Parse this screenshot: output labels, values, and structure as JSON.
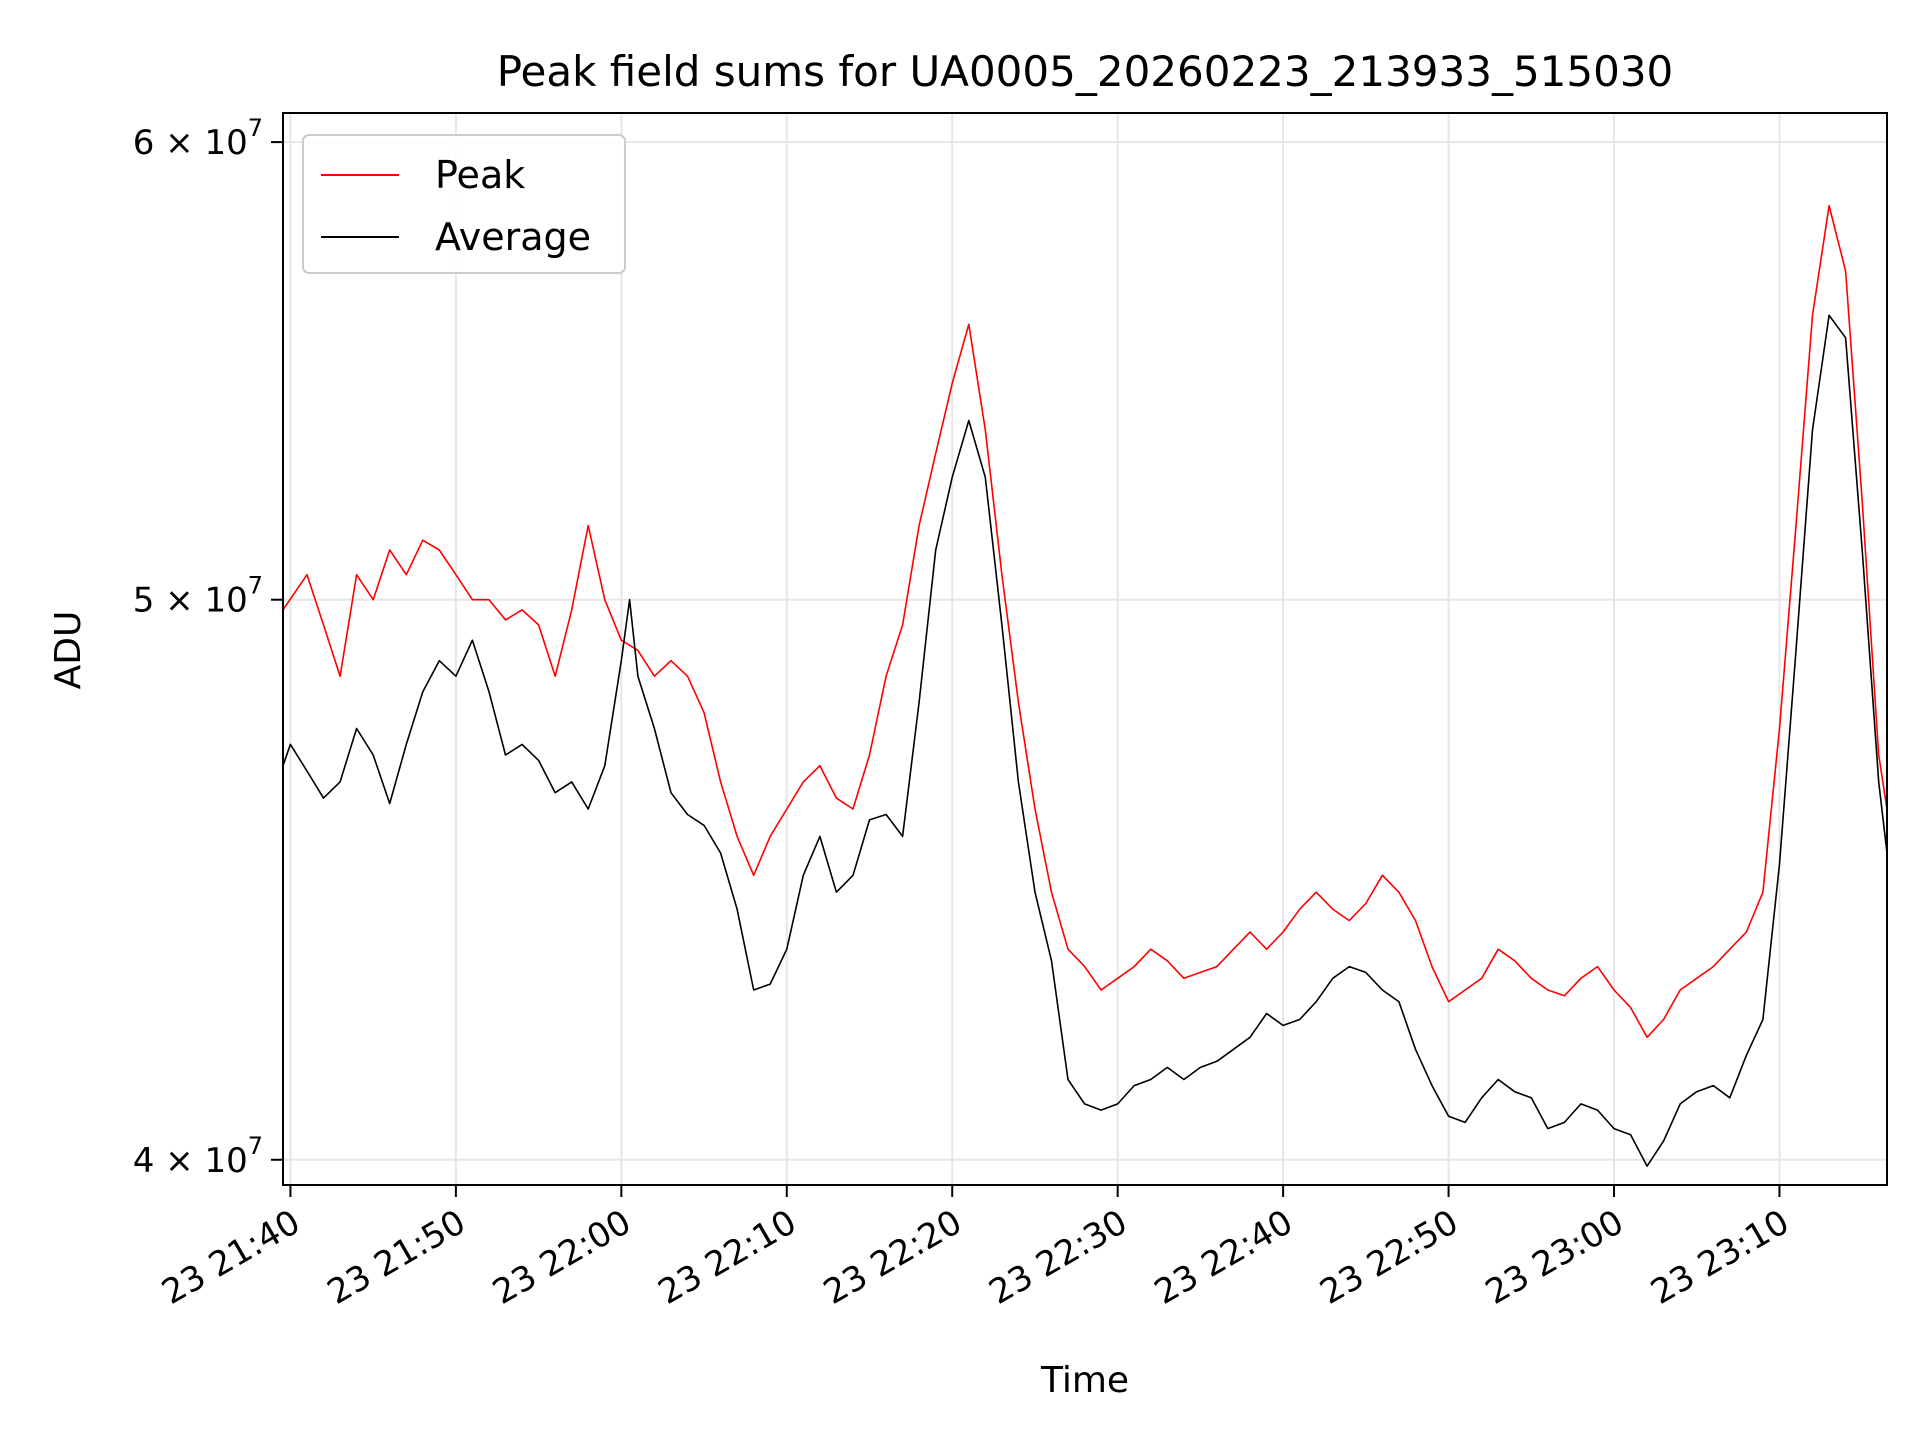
{
  "chart_data": {
    "type": "line",
    "title": "Peak field sums for UA0005_20260223_213933_515030",
    "xlabel": "Time",
    "ylabel": "ADU",
    "x_range": [
      "2026-02-23 21:39:33",
      "2026-02-23 23:16:30"
    ],
    "ylim": [
      39600000,
      60700000
    ],
    "y_scale": "log",
    "y_ticks": [
      {
        "value": 40000000,
        "mantissa": "4",
        "exp": "7"
      },
      {
        "value": 50000000,
        "mantissa": "5",
        "exp": "7"
      },
      {
        "value": 60000000,
        "mantissa": "6",
        "exp": "7"
      }
    ],
    "x_ticks": [
      {
        "time": "2026-02-23 21:40:00",
        "label": "23 21:40"
      },
      {
        "time": "2026-02-23 21:50:00",
        "label": "23 21:50"
      },
      {
        "time": "2026-02-23 22:00:00",
        "label": "23 22:00"
      },
      {
        "time": "2026-02-23 22:10:00",
        "label": "23 22:10"
      },
      {
        "time": "2026-02-23 22:20:00",
        "label": "23 22:20"
      },
      {
        "time": "2026-02-23 22:30:00",
        "label": "23 22:30"
      },
      {
        "time": "2026-02-23 22:40:00",
        "label": "23 22:40"
      },
      {
        "time": "2026-02-23 22:50:00",
        "label": "23 22:50"
      },
      {
        "time": "2026-02-23 23:00:00",
        "label": "23 23:00"
      },
      {
        "time": "2026-02-23 23:10:00",
        "label": "23 23:10"
      }
    ],
    "grid": true,
    "legend_position": "top-left",
    "series": [
      {
        "name": "Peak",
        "color": "#ff0000",
        "points": [
          [
            "2026-02-23 21:39:33",
            49800000
          ],
          [
            "2026-02-23 21:41:00",
            50500000
          ],
          [
            "2026-02-23 21:42:00",
            49500000
          ],
          [
            "2026-02-23 21:43:00",
            48500000
          ],
          [
            "2026-02-23 21:44:00",
            50500000
          ],
          [
            "2026-02-23 21:45:00",
            50000000
          ],
          [
            "2026-02-23 21:46:00",
            51000000
          ],
          [
            "2026-02-23 21:47:00",
            50500000
          ],
          [
            "2026-02-23 21:48:00",
            51200000
          ],
          [
            "2026-02-23 21:49:00",
            51000000
          ],
          [
            "2026-02-23 21:50:00",
            50500000
          ],
          [
            "2026-02-23 21:51:00",
            50000000
          ],
          [
            "2026-02-23 21:52:00",
            50000000
          ],
          [
            "2026-02-23 21:53:00",
            49600000
          ],
          [
            "2026-02-23 21:54:00",
            49800000
          ],
          [
            "2026-02-23 21:55:00",
            49500000
          ],
          [
            "2026-02-23 21:56:00",
            48500000
          ],
          [
            "2026-02-23 21:57:00",
            49800000
          ],
          [
            "2026-02-23 21:58:00",
            51500000
          ],
          [
            "2026-02-23 21:59:00",
            50000000
          ],
          [
            "2026-02-23 22:00:00",
            49200000
          ],
          [
            "2026-02-23 22:01:00",
            49000000
          ],
          [
            "2026-02-23 22:02:00",
            48500000
          ],
          [
            "2026-02-23 22:03:00",
            48800000
          ],
          [
            "2026-02-23 22:04:00",
            48500000
          ],
          [
            "2026-02-23 22:05:00",
            47800000
          ],
          [
            "2026-02-23 22:06:00",
            46500000
          ],
          [
            "2026-02-23 22:07:00",
            45500000
          ],
          [
            "2026-02-23 22:08:00",
            44800000
          ],
          [
            "2026-02-23 22:09:00",
            45500000
          ],
          [
            "2026-02-23 22:10:00",
            46000000
          ],
          [
            "2026-02-23 22:11:00",
            46500000
          ],
          [
            "2026-02-23 22:12:00",
            46800000
          ],
          [
            "2026-02-23 22:13:00",
            46200000
          ],
          [
            "2026-02-23 22:14:00",
            46000000
          ],
          [
            "2026-02-23 22:15:00",
            47000000
          ],
          [
            "2026-02-23 22:16:00",
            48500000
          ],
          [
            "2026-02-23 22:17:00",
            49500000
          ],
          [
            "2026-02-23 22:18:00",
            51500000
          ],
          [
            "2026-02-23 22:19:00",
            53000000
          ],
          [
            "2026-02-23 22:20:00",
            54500000
          ],
          [
            "2026-02-23 22:21:00",
            55800000
          ],
          [
            "2026-02-23 22:22:00",
            53500000
          ],
          [
            "2026-02-23 22:23:00",
            50500000
          ],
          [
            "2026-02-23 22:24:00",
            48000000
          ],
          [
            "2026-02-23 22:25:00",
            46000000
          ],
          [
            "2026-02-23 22:26:00",
            44500000
          ],
          [
            "2026-02-23 22:27:00",
            43500000
          ],
          [
            "2026-02-23 22:28:00",
            43200000
          ],
          [
            "2026-02-23 22:29:00",
            42800000
          ],
          [
            "2026-02-23 22:30:00",
            43000000
          ],
          [
            "2026-02-23 22:31:00",
            43200000
          ],
          [
            "2026-02-23 22:32:00",
            43500000
          ],
          [
            "2026-02-23 22:33:00",
            43300000
          ],
          [
            "2026-02-23 22:34:00",
            43000000
          ],
          [
            "2026-02-23 22:35:00",
            43100000
          ],
          [
            "2026-02-23 22:36:00",
            43200000
          ],
          [
            "2026-02-23 22:37:00",
            43500000
          ],
          [
            "2026-02-23 22:38:00",
            43800000
          ],
          [
            "2026-02-23 22:39:00",
            43500000
          ],
          [
            "2026-02-23 22:40:00",
            43800000
          ],
          [
            "2026-02-23 22:41:00",
            44200000
          ],
          [
            "2026-02-23 22:42:00",
            44500000
          ],
          [
            "2026-02-23 22:43:00",
            44200000
          ],
          [
            "2026-02-23 22:44:00",
            44000000
          ],
          [
            "2026-02-23 22:45:00",
            44300000
          ],
          [
            "2026-02-23 22:46:00",
            44800000
          ],
          [
            "2026-02-23 22:47:00",
            44500000
          ],
          [
            "2026-02-23 22:48:00",
            44000000
          ],
          [
            "2026-02-23 22:49:00",
            43200000
          ],
          [
            "2026-02-23 22:50:00",
            42600000
          ],
          [
            "2026-02-23 22:51:00",
            42800000
          ],
          [
            "2026-02-23 22:52:00",
            43000000
          ],
          [
            "2026-02-23 22:53:00",
            43500000
          ],
          [
            "2026-02-23 22:54:00",
            43300000
          ],
          [
            "2026-02-23 22:55:00",
            43000000
          ],
          [
            "2026-02-23 22:56:00",
            42800000
          ],
          [
            "2026-02-23 22:57:00",
            42700000
          ],
          [
            "2026-02-23 22:58:00",
            43000000
          ],
          [
            "2026-02-23 22:59:00",
            43200000
          ],
          [
            "2026-02-23 23:00:00",
            42800000
          ],
          [
            "2026-02-23 23:01:00",
            42500000
          ],
          [
            "2026-02-23 23:02:00",
            42000000
          ],
          [
            "2026-02-23 23:03:00",
            42300000
          ],
          [
            "2026-02-23 23:04:00",
            42800000
          ],
          [
            "2026-02-23 23:05:00",
            43000000
          ],
          [
            "2026-02-23 23:06:00",
            43200000
          ],
          [
            "2026-02-23 23:07:00",
            43500000
          ],
          [
            "2026-02-23 23:08:00",
            43800000
          ],
          [
            "2026-02-23 23:09:00",
            44500000
          ],
          [
            "2026-02-23 23:10:00",
            47500000
          ],
          [
            "2026-02-23 23:11:00",
            51500000
          ],
          [
            "2026-02-23 23:12:00",
            56000000
          ],
          [
            "2026-02-23 23:13:00",
            58500000
          ],
          [
            "2026-02-23 23:14:00",
            57000000
          ],
          [
            "2026-02-23 23:15:00",
            52000000
          ],
          [
            "2026-02-23 23:16:00",
            47000000
          ],
          [
            "2026-02-23 23:16:30",
            46000000
          ]
        ]
      },
      {
        "name": "Average",
        "color": "#000000",
        "points": [
          [
            "2026-02-23 21:39:33",
            46800000
          ],
          [
            "2026-02-23 21:40:00",
            47200000
          ],
          [
            "2026-02-23 21:41:00",
            46700000
          ],
          [
            "2026-02-23 21:42:00",
            46200000
          ],
          [
            "2026-02-23 21:43:00",
            46500000
          ],
          [
            "2026-02-23 21:44:00",
            47500000
          ],
          [
            "2026-02-23 21:45:00",
            47000000
          ],
          [
            "2026-02-23 21:46:00",
            46100000
          ],
          [
            "2026-02-23 21:47:00",
            47200000
          ],
          [
            "2026-02-23 21:48:00",
            48200000
          ],
          [
            "2026-02-23 21:49:00",
            48800000
          ],
          [
            "2026-02-23 21:50:00",
            48500000
          ],
          [
            "2026-02-23 21:51:00",
            49200000
          ],
          [
            "2026-02-23 21:52:00",
            48200000
          ],
          [
            "2026-02-23 21:53:00",
            47000000
          ],
          [
            "2026-02-23 21:54:00",
            47200000
          ],
          [
            "2026-02-23 21:55:00",
            46900000
          ],
          [
            "2026-02-23 21:56:00",
            46300000
          ],
          [
            "2026-02-23 21:57:00",
            46500000
          ],
          [
            "2026-02-23 21:58:00",
            46000000
          ],
          [
            "2026-02-23 21:59:00",
            46800000
          ],
          [
            "2026-02-23 22:00:00",
            48800000
          ],
          [
            "2026-02-23 22:00:30",
            50000000
          ],
          [
            "2026-02-23 22:01:00",
            48500000
          ],
          [
            "2026-02-23 22:02:00",
            47500000
          ],
          [
            "2026-02-23 22:03:00",
            46300000
          ],
          [
            "2026-02-23 22:04:00",
            45900000
          ],
          [
            "2026-02-23 22:05:00",
            45700000
          ],
          [
            "2026-02-23 22:06:00",
            45200000
          ],
          [
            "2026-02-23 22:07:00",
            44200000
          ],
          [
            "2026-02-23 22:08:00",
            42800000
          ],
          [
            "2026-02-23 22:09:00",
            42900000
          ],
          [
            "2026-02-23 22:10:00",
            43500000
          ],
          [
            "2026-02-23 22:11:00",
            44800000
          ],
          [
            "2026-02-23 22:12:00",
            45500000
          ],
          [
            "2026-02-23 22:13:00",
            44500000
          ],
          [
            "2026-02-23 22:14:00",
            44800000
          ],
          [
            "2026-02-23 22:15:00",
            45800000
          ],
          [
            "2026-02-23 22:16:00",
            45900000
          ],
          [
            "2026-02-23 22:17:00",
            45500000
          ],
          [
            "2026-02-23 22:18:00",
            48000000
          ],
          [
            "2026-02-23 22:19:00",
            51000000
          ],
          [
            "2026-02-23 22:20:00",
            52500000
          ],
          [
            "2026-02-23 22:21:00",
            53700000
          ],
          [
            "2026-02-23 22:22:00",
            52500000
          ],
          [
            "2026-02-23 22:23:00",
            49500000
          ],
          [
            "2026-02-23 22:24:00",
            46500000
          ],
          [
            "2026-02-23 22:25:00",
            44500000
          ],
          [
            "2026-02-23 22:26:00",
            43300000
          ],
          [
            "2026-02-23 22:27:00",
            41300000
          ],
          [
            "2026-02-23 22:28:00",
            40900000
          ],
          [
            "2026-02-23 22:29:00",
            40800000
          ],
          [
            "2026-02-23 22:30:00",
            40900000
          ],
          [
            "2026-02-23 22:31:00",
            41200000
          ],
          [
            "2026-02-23 22:32:00",
            41300000
          ],
          [
            "2026-02-23 22:33:00",
            41500000
          ],
          [
            "2026-02-23 22:34:00",
            41300000
          ],
          [
            "2026-02-23 22:35:00",
            41500000
          ],
          [
            "2026-02-23 22:36:00",
            41600000
          ],
          [
            "2026-02-23 22:37:00",
            41800000
          ],
          [
            "2026-02-23 22:38:00",
            42000000
          ],
          [
            "2026-02-23 22:39:00",
            42400000
          ],
          [
            "2026-02-23 22:40:00",
            42200000
          ],
          [
            "2026-02-23 22:41:00",
            42300000
          ],
          [
            "2026-02-23 22:42:00",
            42600000
          ],
          [
            "2026-02-23 22:43:00",
            43000000
          ],
          [
            "2026-02-23 22:44:00",
            43200000
          ],
          [
            "2026-02-23 22:45:00",
            43100000
          ],
          [
            "2026-02-23 22:46:00",
            42800000
          ],
          [
            "2026-02-23 22:47:00",
            42600000
          ],
          [
            "2026-02-23 22:48:00",
            41800000
          ],
          [
            "2026-02-23 22:49:00",
            41200000
          ],
          [
            "2026-02-23 22:50:00",
            40700000
          ],
          [
            "2026-02-23 22:51:00",
            40600000
          ],
          [
            "2026-02-23 22:52:00",
            41000000
          ],
          [
            "2026-02-23 22:53:00",
            41300000
          ],
          [
            "2026-02-23 22:54:00",
            41100000
          ],
          [
            "2026-02-23 22:55:00",
            41000000
          ],
          [
            "2026-02-23 22:56:00",
            40500000
          ],
          [
            "2026-02-23 22:57:00",
            40600000
          ],
          [
            "2026-02-23 22:58:00",
            40900000
          ],
          [
            "2026-02-23 22:59:00",
            40800000
          ],
          [
            "2026-02-23 23:00:00",
            40500000
          ],
          [
            "2026-02-23 23:01:00",
            40400000
          ],
          [
            "2026-02-23 23:02:00",
            39900000
          ],
          [
            "2026-02-23 23:03:00",
            40300000
          ],
          [
            "2026-02-23 23:04:00",
            40900000
          ],
          [
            "2026-02-23 23:05:00",
            41100000
          ],
          [
            "2026-02-23 23:06:00",
            41200000
          ],
          [
            "2026-02-23 23:07:00",
            41000000
          ],
          [
            "2026-02-23 23:08:00",
            41700000
          ],
          [
            "2026-02-23 23:09:00",
            42300000
          ],
          [
            "2026-02-23 23:10:00",
            45000000
          ],
          [
            "2026-02-23 23:11:00",
            49000000
          ],
          [
            "2026-02-23 23:12:00",
            53500000
          ],
          [
            "2026-02-23 23:13:00",
            56000000
          ],
          [
            "2026-02-23 23:14:00",
            55500000
          ],
          [
            "2026-02-23 23:15:00",
            51000000
          ],
          [
            "2026-02-23 23:16:00",
            46500000
          ],
          [
            "2026-02-23 23:16:30",
            45200000
          ]
        ]
      }
    ]
  }
}
